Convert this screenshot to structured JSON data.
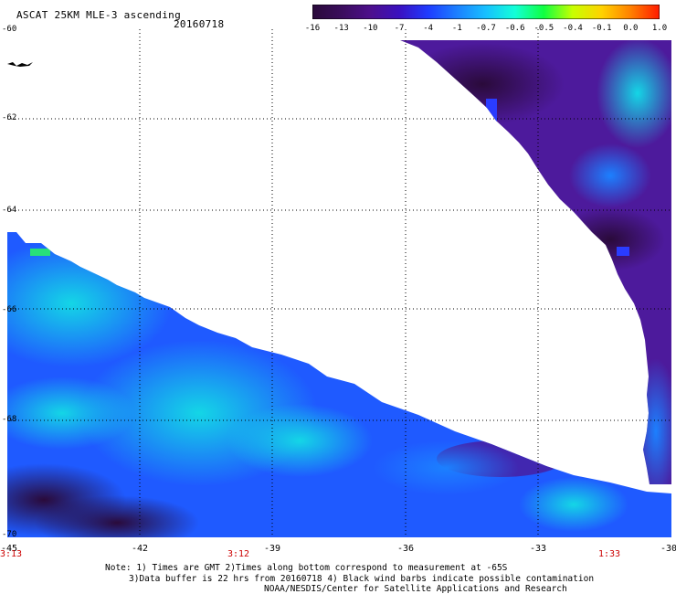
{
  "header": {
    "title": "ASCAT 25KM MLE-3 ascending",
    "date": "20160718"
  },
  "colorbar": {
    "labels": [
      "-16",
      "-13",
      "-10",
      "-7",
      "-4",
      "-1",
      "-0.7",
      "-0.6",
      "-0.5",
      "-0.4",
      "-0.1",
      "0.0",
      "1.0"
    ],
    "colors": [
      "#2a0a3a",
      "#3a0d5c",
      "#4d0f8c",
      "#3a10c0",
      "#1f3bff",
      "#1c80ff",
      "#17c0ff",
      "#12ffd8",
      "#10ff40",
      "#c8ff00",
      "#ffd200",
      "#ff8000",
      "#ff1a00"
    ]
  },
  "axes": {
    "lat_labels": [
      "-60",
      "-62",
      "-64",
      "-66",
      "-68",
      "-70"
    ],
    "lon_labels": [
      "-45",
      "-42",
      "-39",
      "-36",
      "-33",
      "-30"
    ],
    "time_labels": [
      "3:13",
      "3:12",
      "1:33"
    ]
  },
  "notes": {
    "line1": "Note: 1) Times are GMT 2)Times along bottom correspond to measurement at -65S",
    "line2": "3)Data buffer is 22 hrs from 20160718 4) Black wind barbs indicate possible contamination",
    "line3": "NOAA/NESDIS/Center for Satellite Applications and Research"
  }
}
